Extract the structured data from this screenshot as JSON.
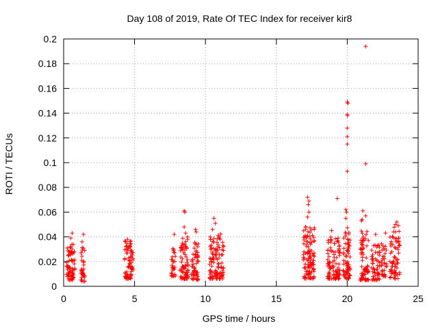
{
  "chart_data": {
    "type": "scatter",
    "title": "Day 108 of 2019, Rate Of TEC Index for receiver kir8",
    "xlabel": "GPS time / hours",
    "ylabel": "ROTI / TECUs",
    "xlim": [
      0,
      25
    ],
    "ylim": [
      0,
      0.2
    ],
    "grid": true,
    "marker": "+",
    "color": "#ff0000",
    "x_ticks": [
      0,
      5,
      10,
      15,
      20,
      25
    ],
    "x_tick_labels": [
      "0",
      "5",
      "10",
      "15",
      "20",
      "25"
    ],
    "y_ticks": [
      0,
      0.02,
      0.04,
      0.06,
      0.08,
      0.1,
      0.12,
      0.14,
      0.16,
      0.18,
      0.2
    ],
    "y_tick_labels": [
      "0",
      "0.02",
      "0.04",
      "0.06",
      "0.08",
      "0.1",
      "0.12",
      "0.14",
      "0.16",
      "0.18",
      "0.2"
    ],
    "clusters": [
      {
        "x_start": 0.2,
        "x_end": 0.8,
        "y_min": 0.005,
        "y_max": 0.034,
        "count": 75
      },
      {
        "x_start": 1.2,
        "x_end": 1.5,
        "y_min": 0.004,
        "y_max": 0.032,
        "count": 35
      },
      {
        "x_start": 4.3,
        "x_end": 4.9,
        "y_min": 0.006,
        "y_max": 0.037,
        "count": 75
      },
      {
        "x_start": 7.6,
        "x_end": 7.9,
        "y_min": 0.008,
        "y_max": 0.032,
        "count": 30
      },
      {
        "x_start": 8.2,
        "x_end": 8.8,
        "y_min": 0.006,
        "y_max": 0.04,
        "count": 70
      },
      {
        "x_start": 9.0,
        "x_end": 9.5,
        "y_min": 0.005,
        "y_max": 0.036,
        "count": 55
      },
      {
        "x_start": 10.3,
        "x_end": 11.3,
        "y_min": 0.006,
        "y_max": 0.045,
        "count": 110
      },
      {
        "x_start": 16.9,
        "x_end": 17.7,
        "y_min": 0.006,
        "y_max": 0.05,
        "count": 110
      },
      {
        "x_start": 18.6,
        "x_end": 19.5,
        "y_min": 0.006,
        "y_max": 0.04,
        "count": 100
      },
      {
        "x_start": 19.7,
        "x_end": 20.2,
        "y_min": 0.006,
        "y_max": 0.05,
        "count": 70
      },
      {
        "x_start": 20.9,
        "x_end": 21.5,
        "y_min": 0.005,
        "y_max": 0.045,
        "count": 70
      },
      {
        "x_start": 21.7,
        "x_end": 22.3,
        "y_min": 0.005,
        "y_max": 0.035,
        "count": 55
      },
      {
        "x_start": 22.4,
        "x_end": 22.8,
        "y_min": 0.008,
        "y_max": 0.035,
        "count": 35
      },
      {
        "x_start": 23.0,
        "x_end": 23.7,
        "y_min": 0.006,
        "y_max": 0.048,
        "count": 70
      }
    ],
    "points": [
      {
        "x": 0.6,
        "y": 0.043
      },
      {
        "x": 0.5,
        "y": 0.039
      },
      {
        "x": 1.4,
        "y": 0.042
      },
      {
        "x": 1.3,
        "y": 0.036
      },
      {
        "x": 4.5,
        "y": 0.038
      },
      {
        "x": 7.8,
        "y": 0.042
      },
      {
        "x": 8.5,
        "y": 0.061
      },
      {
        "x": 8.55,
        "y": 0.06
      },
      {
        "x": 8.5,
        "y": 0.048
      },
      {
        "x": 8.6,
        "y": 0.043
      },
      {
        "x": 9.3,
        "y": 0.046
      },
      {
        "x": 9.35,
        "y": 0.044
      },
      {
        "x": 10.6,
        "y": 0.055
      },
      {
        "x": 10.7,
        "y": 0.051
      },
      {
        "x": 10.5,
        "y": 0.046
      },
      {
        "x": 17.2,
        "y": 0.072
      },
      {
        "x": 17.3,
        "y": 0.069
      },
      {
        "x": 17.25,
        "y": 0.066
      },
      {
        "x": 17.3,
        "y": 0.06
      },
      {
        "x": 17.2,
        "y": 0.056
      },
      {
        "x": 18.9,
        "y": 0.045
      },
      {
        "x": 19.3,
        "y": 0.071
      },
      {
        "x": 19.9,
        "y": 0.062
      },
      {
        "x": 19.95,
        "y": 0.06
      },
      {
        "x": 19.9,
        "y": 0.055
      },
      {
        "x": 20.0,
        "y": 0.149
      },
      {
        "x": 20.05,
        "y": 0.148
      },
      {
        "x": 20.0,
        "y": 0.139
      },
      {
        "x": 20.02,
        "y": 0.138
      },
      {
        "x": 20.0,
        "y": 0.128
      },
      {
        "x": 20.0,
        "y": 0.121
      },
      {
        "x": 20.0,
        "y": 0.115
      },
      {
        "x": 20.0,
        "y": 0.093
      },
      {
        "x": 21.1,
        "y": 0.061
      },
      {
        "x": 21.0,
        "y": 0.053
      },
      {
        "x": 21.05,
        "y": 0.054
      },
      {
        "x": 21.3,
        "y": 0.057
      },
      {
        "x": 21.3,
        "y": 0.194
      },
      {
        "x": 21.3,
        "y": 0.099
      },
      {
        "x": 22.0,
        "y": 0.042
      },
      {
        "x": 22.7,
        "y": 0.043
      },
      {
        "x": 23.5,
        "y": 0.052
      },
      {
        "x": 23.4,
        "y": 0.05
      },
      {
        "x": 23.6,
        "y": 0.049
      }
    ]
  }
}
